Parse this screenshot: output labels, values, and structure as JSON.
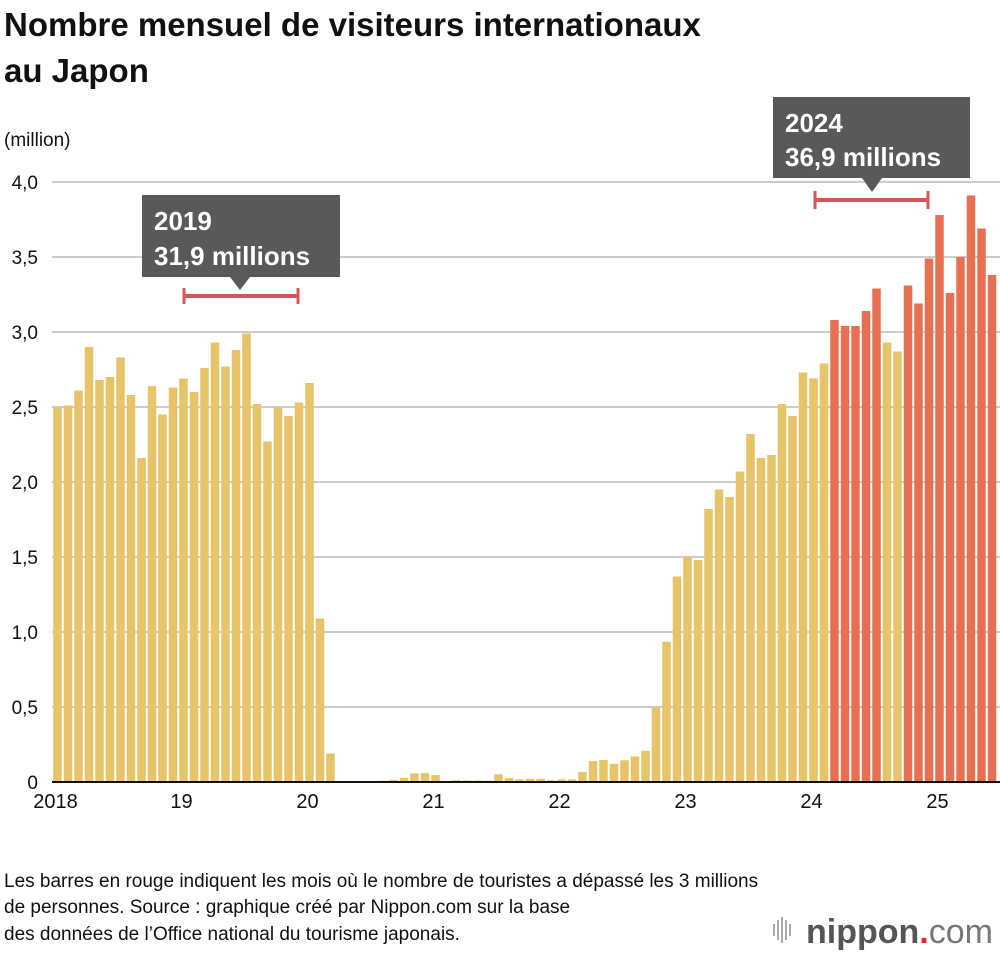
{
  "title_lines": [
    "Nombre mensuel de visiteurs internationaux",
    "au Japon"
  ],
  "footer_lines": [
    "Les barres en rouge indiquent les mois où le nombre de touristes a dépassé les 3 millions",
    "de personnes. Source : graphique créé par Nippon.com sur la base",
    "des données de l’Office national du tourisme japonais."
  ],
  "logo": {
    "main": "nippon",
    "dot": ".",
    "suffix": "com",
    "dot_color": "#E8262C"
  },
  "colors": {
    "below_3m": "#E8C468",
    "above_3m": "#E87052",
    "bracket": "#D9545A",
    "callout": "#595959"
  },
  "chart_data": {
    "type": "bar",
    "ylabel": "(million)",
    "ylim": [
      0,
      4.0
    ],
    "yticks": [
      "0",
      "0,5",
      "1,0",
      "1,5",
      "2,0",
      "2,5",
      "3,0",
      "3,5",
      "4,0"
    ],
    "xticks": [
      "2018",
      "19",
      "20",
      "21",
      "22",
      "23",
      "24",
      "25"
    ],
    "grid": true,
    "threshold": 3.0,
    "start": "2018-01",
    "values": [
      2.5,
      2.51,
      2.61,
      2.9,
      2.68,
      2.7,
      2.83,
      2.58,
      2.16,
      2.64,
      2.45,
      2.63,
      2.69,
      2.6,
      2.76,
      2.93,
      2.77,
      2.88,
      2.99,
      2.52,
      2.27,
      2.5,
      2.44,
      2.53,
      2.66,
      1.09,
      0.19,
      0.003,
      0.002,
      0.003,
      0.004,
      0.009,
      0.014,
      0.028,
      0.057,
      0.059,
      0.046,
      0.007,
      0.012,
      0.011,
      0.01,
      0.009,
      0.051,
      0.026,
      0.018,
      0.022,
      0.021,
      0.012,
      0.017,
      0.017,
      0.066,
      0.139,
      0.147,
      0.121,
      0.145,
      0.17,
      0.207,
      0.499,
      0.935,
      1.37,
      1.5,
      1.48,
      1.82,
      1.95,
      1.9,
      2.07,
      2.32,
      2.16,
      2.18,
      2.52,
      2.44,
      2.73,
      2.69,
      2.79,
      3.08,
      3.04,
      3.04,
      3.14,
      3.29,
      2.93,
      2.87,
      3.31,
      3.19,
      3.49,
      3.78,
      3.26,
      3.5,
      3.91,
      3.69,
      3.38
    ],
    "annotations": [
      {
        "year": "2019",
        "total": "31,9 millions"
      },
      {
        "year": "2024",
        "total": "36,9 millions"
      }
    ]
  }
}
